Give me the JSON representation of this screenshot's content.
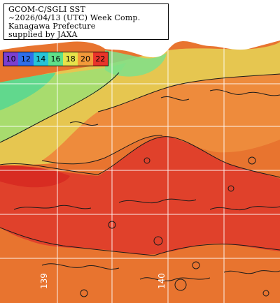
{
  "title_lines": [
    "GCOM-C/SGLI SST",
    "~2026/04/13 (UTC) Week Comp.",
    "Kanagawa Prefecture",
    "supplied by JAXA"
  ],
  "legend": {
    "values": [
      "10",
      "12",
      "14",
      "16",
      "18",
      "20",
      "22"
    ],
    "colors": [
      "#7b3fd0",
      "#2f6ee8",
      "#27c4d6",
      "#5fe08a",
      "#e6e34a",
      "#f39a3a",
      "#e9342a"
    ]
  },
  "lon_labels": [
    "139",
    "140"
  ],
  "palette": {
    "land": "#ffffff",
    "sst_10": "#7b3fd0",
    "sst_12": "#2f6ee8",
    "sst_14": "#27c4d6",
    "sst_16": "#5fe08a",
    "sst_18": "#e6e34a",
    "sst_19": "#f0b457",
    "sst_20": "#ee8b3c",
    "sst_21": "#e8742f",
    "sst_22": "#e0412b",
    "contour": "#1a1a1a",
    "grid": "#ffffff"
  }
}
